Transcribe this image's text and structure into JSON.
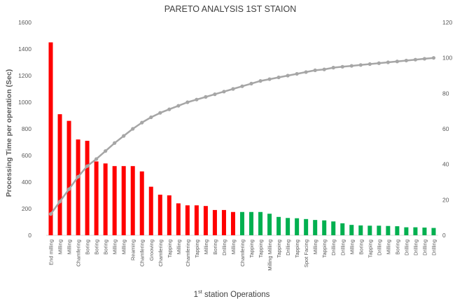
{
  "chart_data": {
    "type": "bar",
    "title": "PARETO ANALYSIS 1ST STAION",
    "ylabel": "Processing Time per operation (Sec)",
    "xlabel": {
      "prefix": "1",
      "superscript": "st",
      "rest": " station Operations"
    },
    "ylim": [
      0,
      1600
    ],
    "y_ticks": [
      0,
      200,
      400,
      600,
      800,
      1000,
      1200,
      1400,
      1600
    ],
    "y2lim": [
      0,
      120
    ],
    "y2_ticks": [
      0,
      20,
      40,
      60,
      80,
      100,
      120
    ],
    "grid": false,
    "legend": "none",
    "categories": [
      "End milling",
      "Milling",
      "Milling",
      "Chamfering",
      "Boring",
      "Boring",
      "Boring",
      "Milling",
      "Milling",
      "Reaming",
      "Chamfering",
      "Grooving",
      "Chamfering",
      "Tapping",
      "Milling",
      "Chamfering",
      "Tapping",
      "Milling",
      "Boring",
      "Drilling",
      "Milling",
      "Chamfering",
      "Tapping",
      "Tapping",
      "Milling Milling",
      "Tapping",
      "Drilling",
      "Tapping",
      "Spot Facing",
      "Milling",
      "Tapping",
      "Drilling",
      "Drilling",
      "Milling",
      "Boring",
      "Tapping",
      "Drilling",
      "Milling",
      "Boring",
      "Drilling",
      "Drilling",
      "Drilling",
      "Drilling"
    ],
    "series": [
      {
        "type": "bar",
        "axis": "left",
        "values": [
          1450,
          910,
          860,
          720,
          710,
          555,
          540,
          520,
          520,
          520,
          480,
          365,
          305,
          300,
          240,
          225,
          225,
          220,
          190,
          190,
          175,
          175,
          175,
          175,
          162,
          138,
          130,
          128,
          122,
          115,
          112,
          104,
          90,
          78,
          74,
          72,
          72,
          70,
          68,
          60,
          60,
          58,
          55
        ],
        "colors": [
          "#ff0000",
          "#ff0000",
          "#ff0000",
          "#ff0000",
          "#ff0000",
          "#ff0000",
          "#ff0000",
          "#ff0000",
          "#ff0000",
          "#ff0000",
          "#ff0000",
          "#ff0000",
          "#ff0000",
          "#ff0000",
          "#ff0000",
          "#ff0000",
          "#ff0000",
          "#ff0000",
          "#ff0000",
          "#ff0000",
          "#ff0000",
          "#00b050",
          "#00b050",
          "#00b050",
          "#00b050",
          "#00b050",
          "#00b050",
          "#00b050",
          "#00b050",
          "#00b050",
          "#00b050",
          "#00b050",
          "#00b050",
          "#00b050",
          "#00b050",
          "#00b050",
          "#00b050",
          "#00b050",
          "#00b050",
          "#00b050",
          "#00b050",
          "#00b050",
          "#00b050"
        ]
      },
      {
        "type": "line",
        "axis": "right",
        "color": "#a6a6a6",
        "values": [
          12,
          19,
          26,
          33,
          39,
          43,
          47.5,
          52,
          56,
          60,
          63.5,
          66.5,
          69,
          71,
          73,
          75,
          76.5,
          78,
          79.5,
          81,
          82.5,
          84,
          85.5,
          87,
          88,
          89,
          90,
          91,
          92,
          93,
          93.5,
          94.5,
          95,
          95.5,
          96,
          96.5,
          97,
          97.5,
          98,
          98.5,
          99,
          99.5,
          100
        ]
      }
    ]
  }
}
